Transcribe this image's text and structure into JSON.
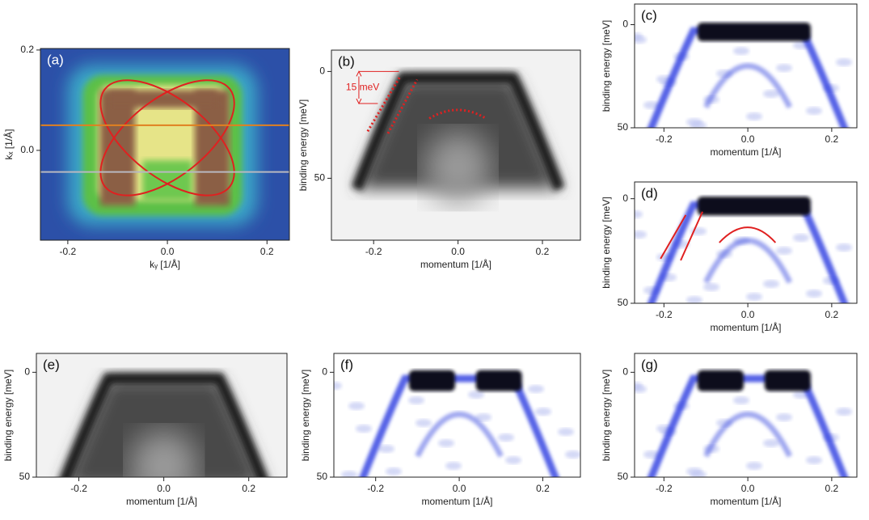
{
  "chart_data": [
    {
      "type": "image",
      "label": "(a)",
      "xlabel": "kᵧ [1/Å]",
      "ylabel": "kₓ [1/Å]",
      "xlim": [
        -0.255,
        0.245
      ],
      "ylim": [
        -0.179,
        0.203
      ],
      "xticks": [
        -0.2,
        {
          "value": 0,
          "label": "0.0"
        },
        0.2
      ],
      "yticks": [
        0.2,
        {
          "value": 0,
          "label": "0.0"
        }
      ]
    },
    {
      "type": "image",
      "label": "(b)",
      "xlabel": "momentum [1/Å]",
      "ylabel": "binding energy [meV]",
      "xlim": [
        -0.3,
        0.29
      ],
      "ylim": [
        79,
        -10
      ],
      "xticks": [
        -0.2,
        {
          "value": 0,
          "label": "0.0"
        },
        0.2
      ],
      "yticks": [
        0,
        50
      ],
      "annotations": [
        "15 meV"
      ]
    },
    {
      "type": "image",
      "label": "(c)",
      "xlabel": "momentum [1/Å]",
      "ylabel": "binding energy [meV]",
      "xlim": [
        -0.27,
        0.26
      ],
      "ylim": [
        50,
        -10
      ],
      "xticks": [
        -0.2,
        {
          "value": 0,
          "label": "0.0"
        },
        0.2
      ],
      "yticks": [
        0,
        50
      ]
    },
    {
      "type": "image",
      "label": "(d)",
      "xlabel": "momentum [1/Å]",
      "ylabel": "binding energy [meV]",
      "xlim": [
        -0.27,
        0.26
      ],
      "ylim": [
        50,
        -8
      ],
      "xticks": [
        -0.2,
        {
          "value": 0,
          "label": "0.0"
        },
        0.2
      ],
      "yticks": [
        0,
        50
      ]
    },
    {
      "type": "image",
      "label": "(e)",
      "xlabel": "momentum [1/Å]",
      "ylabel": "binding energy [meV]",
      "xlim": [
        -0.3,
        0.29
      ],
      "ylim": [
        50,
        -9
      ],
      "xticks": [
        -0.2,
        {
          "value": 0,
          "label": "0.0"
        },
        0.2
      ],
      "yticks": [
        0,
        50
      ]
    },
    {
      "type": "image",
      "label": "(f)",
      "xlabel": "momentum [1/Å]",
      "ylabel": "binding energy [meV]",
      "xlim": [
        -0.3,
        0.29
      ],
      "ylim": [
        50,
        -9
      ],
      "xticks": [
        -0.2,
        {
          "value": 0,
          "label": "0.0"
        },
        0.2
      ],
      "yticks": [
        0,
        50
      ]
    },
    {
      "type": "image",
      "label": "(g)",
      "xlabel": "momentum [1/Å]",
      "ylabel": "binding energy [meV]",
      "xlim": [
        -0.27,
        0.26
      ],
      "ylim": [
        50,
        -9
      ],
      "xticks": [
        -0.2,
        {
          "value": 0,
          "label": "0.0"
        },
        0.2
      ],
      "yticks": [
        0,
        50
      ]
    }
  ]
}
